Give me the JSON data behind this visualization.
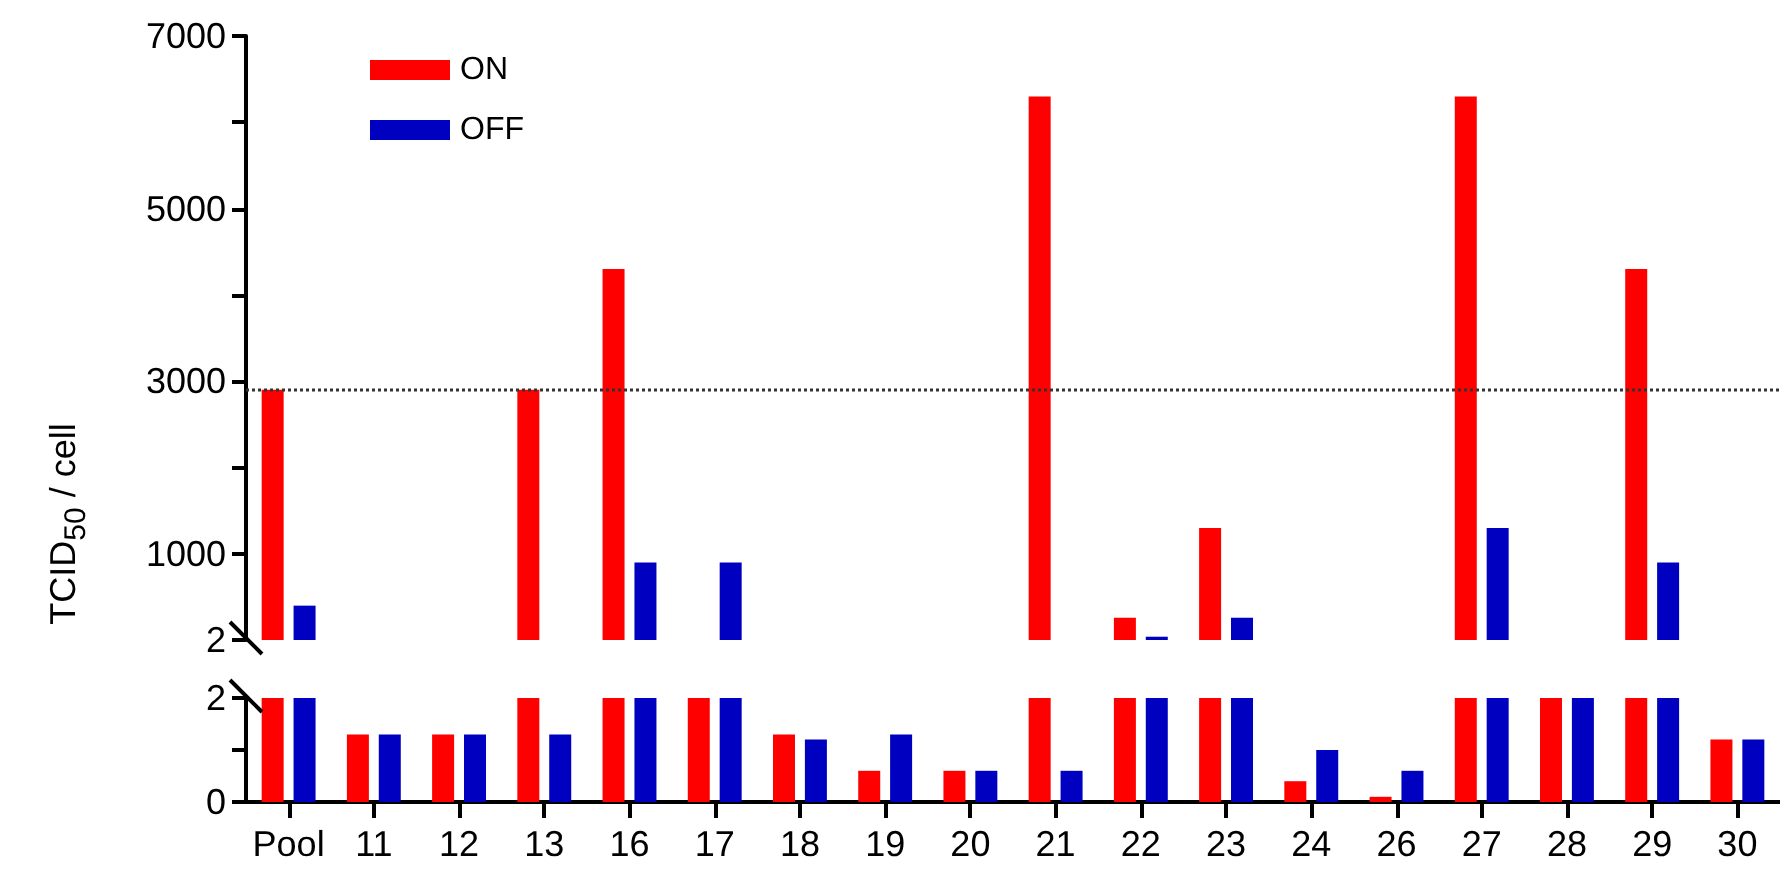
{
  "chart_data": [
    {
      "type": "bar",
      "ylabel": "TCID$_{50}$ / cell",
      "categories": [
        null,
        null,
        null,
        null,
        null,
        null,
        null,
        null,
        null,
        null,
        null,
        null,
        null,
        null,
        null,
        null,
        null,
        null
      ],
      "series": [
        {
          "name": "ON",
          "color": "#ff0000",
          "values": [
            2900,
            null,
            null,
            2900,
            4300,
            null,
            null,
            null,
            null,
            6300,
            260,
            1300,
            null,
            null,
            6300,
            null,
            4300,
            null
          ]
        },
        {
          "name": "OFF",
          "color": "#0000c0",
          "values": [
            400,
            null,
            null,
            null,
            900,
            900,
            null,
            null,
            null,
            null,
            40,
            260,
            null,
            null,
            1300,
            null,
            900,
            null
          ]
        }
      ],
      "ylim": [
        2,
        7000
      ],
      "yticks": [
        2,
        {
          "value": 1000,
          "label": "1000"
        },
        {
          "value": 2000,
          "label": null
        },
        3000,
        {
          "value": 4000,
          "label": null
        },
        5000,
        {
          "value": 6000,
          "label": null
        },
        7000
      ],
      "ref_lines": [
        {
          "axis": "y",
          "value": 2900,
          "line_style": "dotted",
          "color": "#333333"
        }
      ],
      "legend": "top left",
      "grid": false,
      "tick_labels": "y"
    },
    {
      "type": "bar",
      "categories": [
        "Pool",
        "11",
        "12",
        "13",
        "16",
        "17",
        "18",
        "19",
        "20",
        "21",
        "22",
        "23",
        "24",
        "26",
        "27",
        "28",
        "29",
        "30"
      ],
      "series": [
        {
          "color": "#ff0000",
          "values": [
            2,
            1.3,
            1.3,
            2,
            2,
            2,
            1.3,
            0.6,
            0.6,
            2,
            2,
            2,
            0.4,
            0.1,
            2,
            2,
            2,
            1.2
          ]
        },
        {
          "color": "#0000c0",
          "values": [
            2,
            1.3,
            1.3,
            1.3,
            2,
            2,
            1.2,
            1.3,
            0.6,
            0.6,
            2,
            2,
            1.0,
            0.6,
            2,
            2,
            2,
            1.2
          ]
        }
      ],
      "ylim": [
        0,
        2
      ],
      "yticks": [
        0,
        {
          "value": 1,
          "label": null
        },
        2
      ],
      "grid": false
    }
  ]
}
